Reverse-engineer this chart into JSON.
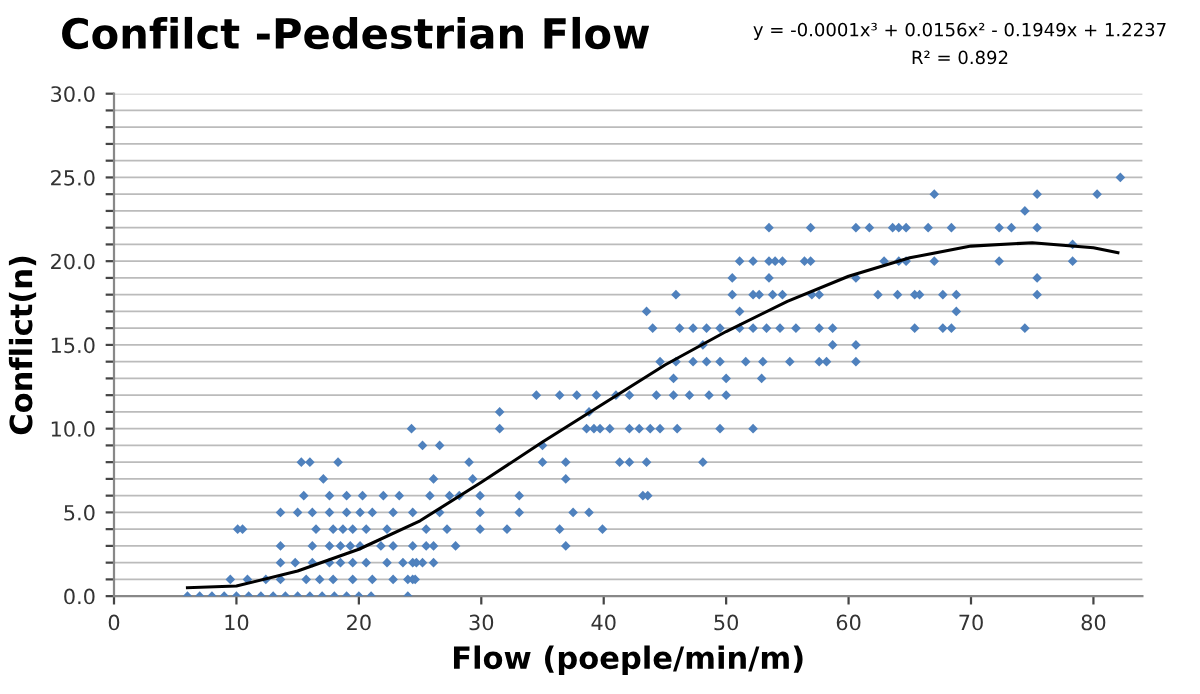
{
  "chart_data": {
    "type": "scatter",
    "title": "Confilct -Pedestrian Flow",
    "xlabel": "Flow (poeple/min/m)",
    "ylabel": "Conflict(n)",
    "annotations": [
      "y = -0.0001x³ + 0.0156x² - 0.1949x + 1.2237",
      "R² = 0.892"
    ],
    "xlim": [
      0,
      84
    ],
    "ylim": [
      0,
      30
    ],
    "xticks": [
      0,
      10,
      20,
      30,
      40,
      50,
      60,
      70,
      80
    ],
    "yticks": [
      {
        "value": 0,
        "label": "0.0"
      },
      {
        "value": 1,
        "label": null
      },
      {
        "value": 2,
        "label": null
      },
      {
        "value": 3,
        "label": null
      },
      {
        "value": 4,
        "label": null
      },
      {
        "value": 5,
        "label": "5.0"
      },
      {
        "value": 6,
        "label": null
      },
      {
        "value": 7,
        "label": null
      },
      {
        "value": 8,
        "label": null
      },
      {
        "value": 9,
        "label": null
      },
      {
        "value": 10,
        "label": "10.0"
      },
      {
        "value": 11,
        "label": null
      },
      {
        "value": 12,
        "label": null
      },
      {
        "value": 13,
        "label": null
      },
      {
        "value": 14,
        "label": null
      },
      {
        "value": 15,
        "label": "15.0"
      },
      {
        "value": 16,
        "label": null
      },
      {
        "value": 17,
        "label": null
      },
      {
        "value": 18,
        "label": null
      },
      {
        "value": 19,
        "label": null
      },
      {
        "value": 20,
        "label": "20.0"
      },
      {
        "value": 21,
        "label": null
      },
      {
        "value": 22,
        "label": null
      },
      {
        "value": 23,
        "label": null
      },
      {
        "value": 24,
        "label": null
      },
      {
        "value": 25,
        "label": "25.0"
      },
      {
        "value": 26,
        "label": null
      },
      {
        "value": 27,
        "label": null
      },
      {
        "value": 28,
        "label": null
      },
      {
        "value": 29,
        "label": null
      },
      {
        "value": 30,
        "label": "30.0"
      }
    ],
    "grid": "y",
    "series": [
      {
        "color": "#4f81bd",
        "marker": "diamond",
        "x": [
          6,
          7,
          8,
          9,
          10,
          11,
          12,
          13,
          14,
          15,
          16,
          17,
          18,
          19,
          20,
          21,
          24,
          9.5,
          10.9,
          12.4,
          13.6,
          15.7,
          16.8,
          17.9,
          19.5,
          21.1,
          22.8,
          24,
          24.4,
          24.6,
          13.6,
          14.8,
          16.2,
          17.6,
          18.5,
          19.5,
          20.6,
          22.3,
          23.6,
          24.4,
          24.7,
          25.2,
          26.1,
          13.6,
          16.2,
          17.6,
          18.5,
          19.3,
          20.1,
          21.8,
          22.8,
          24.4,
          25.5,
          26.1,
          27.9,
          36.9,
          10.1,
          10.5,
          16.5,
          17.9,
          18.7,
          19.5,
          20.6,
          22.3,
          25.5,
          27.2,
          29.9,
          32.1,
          36.4,
          39.9,
          13.6,
          15,
          16.2,
          17.6,
          19,
          20.1,
          21.1,
          22.8,
          24.4,
          26.6,
          29.9,
          33.1,
          37.5,
          38.8,
          15.5,
          17.6,
          19,
          20.3,
          22,
          23.3,
          25.8,
          27.4,
          28.2,
          29.9,
          33.1,
          43.2,
          43.6,
          17.1,
          26.1,
          29.3,
          36.9,
          15.3,
          16,
          18.3,
          29,
          35,
          36.9,
          41.3,
          42.1,
          43.5,
          48.1,
          25.2,
          26.6,
          35,
          24.3,
          31.5,
          38.6,
          39.2,
          39.7,
          40.5,
          42.1,
          42.9,
          43.8,
          44.6,
          46,
          49.5,
          52.2,
          31.5,
          38.8,
          34.5,
          36.4,
          37.8,
          39.4,
          41,
          42.1,
          44.3,
          45.7,
          47,
          48.6,
          50,
          45.7,
          50,
          52.9,
          44.6,
          45.9,
          47.3,
          48.4,
          49.5,
          51.6,
          53,
          55.2,
          57.6,
          58.2,
          60.6,
          48.1,
          58.7,
          60.6,
          44,
          46.2,
          47.3,
          48.4,
          49.5,
          51.1,
          52.2,
          53.3,
          54.4,
          55.7,
          57.6,
          58.7,
          65.4,
          67.7,
          68.4,
          74.4,
          43.5,
          51.1,
          68.8,
          45.9,
          50.5,
          52.2,
          52.7,
          53.8,
          54.6,
          57,
          57.6,
          62.4,
          64,
          65.4,
          65.8,
          67.7,
          68.8,
          75.4,
          50.5,
          53.5,
          60.6,
          75.4,
          51.1,
          52.2,
          53.5,
          54,
          54.6,
          56.4,
          56.9,
          62.9,
          64.1,
          64.7,
          67,
          72.3,
          78.3,
          78.3,
          53.5,
          56.9,
          60.6,
          61.7,
          63.6,
          64.1,
          64.7,
          66.5,
          68.4,
          72.3,
          73.3,
          75.4,
          74.4,
          67,
          75.4,
          80.3,
          82.2
        ],
        "values": [
          0,
          0,
          0,
          0,
          0,
          0,
          0,
          0,
          0,
          0,
          0,
          0,
          0,
          0,
          0,
          0,
          0,
          1,
          1,
          1,
          1,
          1,
          1,
          1,
          1,
          1,
          1,
          1,
          1,
          1,
          2,
          2,
          2,
          2,
          2,
          2,
          2,
          2,
          2,
          2,
          2,
          2,
          2,
          3,
          3,
          3,
          3,
          3,
          3,
          3,
          3,
          3,
          3,
          3,
          3,
          3,
          4,
          4,
          4,
          4,
          4,
          4,
          4,
          4,
          4,
          4,
          4,
          4,
          4,
          4,
          5,
          5,
          5,
          5,
          5,
          5,
          5,
          5,
          5,
          5,
          5,
          5,
          5,
          5,
          6,
          6,
          6,
          6,
          6,
          6,
          6,
          6,
          6,
          6,
          6,
          6,
          6,
          7,
          7,
          7,
          7,
          8,
          8,
          8,
          8,
          8,
          8,
          8,
          8,
          8,
          8,
          9,
          9,
          9,
          10,
          10,
          10,
          10,
          10,
          10,
          10,
          10,
          10,
          10,
          10,
          10,
          10,
          11,
          11,
          12,
          12,
          12,
          12,
          12,
          12,
          12,
          12,
          12,
          12,
          12,
          13,
          13,
          13,
          14,
          14,
          14,
          14,
          14,
          14,
          14,
          14,
          14,
          14,
          14,
          15,
          15,
          15,
          16,
          16,
          16,
          16,
          16,
          16,
          16,
          16,
          16,
          16,
          16,
          16,
          16,
          16,
          16,
          16,
          17,
          17,
          17,
          18,
          18,
          18,
          18,
          18,
          18,
          18,
          18,
          18,
          18,
          18,
          18,
          18,
          18,
          18,
          19,
          19,
          19,
          19,
          20,
          20,
          20,
          20,
          20,
          20,
          20,
          20,
          20,
          20,
          20,
          20,
          20,
          21,
          22,
          22,
          22,
          22,
          22,
          22,
          22,
          22,
          22,
          22,
          22,
          22,
          23,
          24,
          24,
          24,
          25
        ]
      },
      {
        "type": "line",
        "color": "#000000",
        "marker": "none",
        "line_style": "solid",
        "x": [
          6,
          10,
          15,
          20,
          25,
          30,
          35,
          40,
          45,
          50,
          55,
          60,
          65,
          70,
          75,
          80,
          82
        ],
        "values": [
          0.5,
          0.6,
          1.5,
          2.8,
          4.5,
          6.8,
          9.2,
          11.5,
          13.8,
          15.8,
          17.6,
          19.1,
          20.2,
          20.9,
          21.1,
          20.8,
          20.5
        ]
      }
    ]
  }
}
